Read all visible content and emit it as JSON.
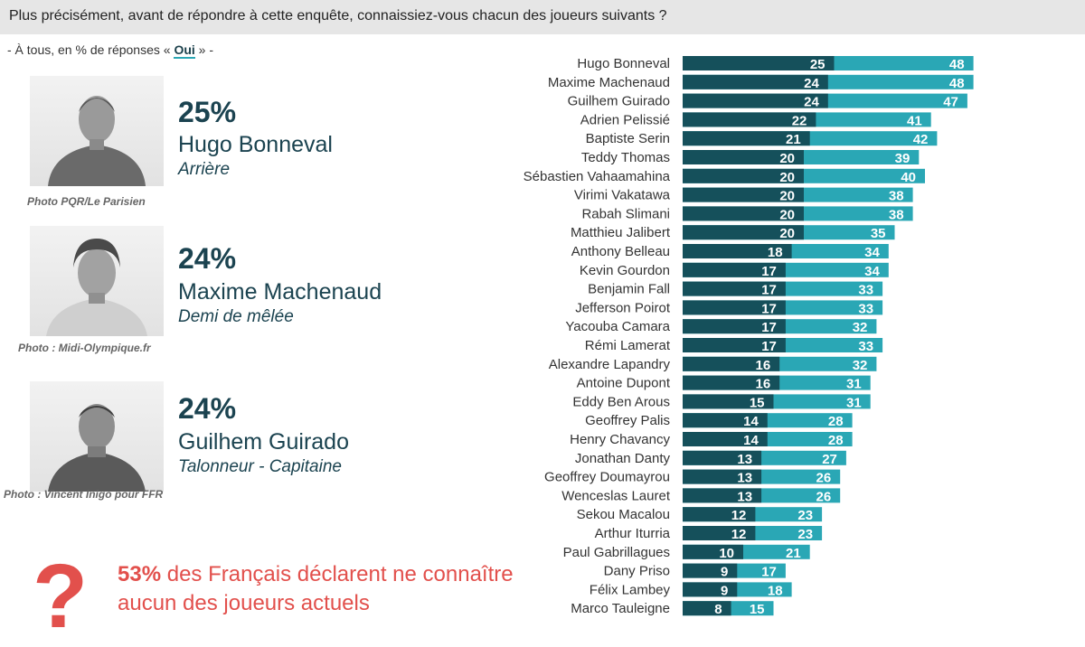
{
  "header": {
    "question": "Plus précisément, avant de répondre à cette enquête, connaissiez-vous chacun des joueurs suivants ?"
  },
  "subtitle": {
    "prefix": "- À tous, en % de réponses « ",
    "highlight": "Oui",
    "suffix": " » -"
  },
  "featured": [
    {
      "pct": "25%",
      "name": "Hugo Bonneval",
      "role": "Arrière",
      "credit": "Photo PQR/Le Parisien"
    },
    {
      "pct": "24%",
      "name": "Maxime Machenaud",
      "role": "Demi de mêlée",
      "credit": "Photo : Midi-Olympique.fr"
    },
    {
      "pct": "24%",
      "name": "Guilhem Guirado",
      "role": "Talonneur - Capitaine",
      "credit": "Photo : Vincent Inigo pour FFR"
    }
  ],
  "callout": {
    "mark": "?",
    "bold": "53%",
    "text": " des Français déclarent ne connaître aucun des joueurs actuels"
  },
  "colors": {
    "dark_series": "#15505b",
    "light_series": "#2aa7b5",
    "accent_red": "#e2504c"
  },
  "chart_data": {
    "type": "bar",
    "orientation": "horizontal",
    "stacked": false,
    "categories": [
      "Hugo Bonneval",
      "Maxime Machenaud",
      "Guilhem Guirado",
      "Adrien Pelissié",
      "Baptiste Serin",
      "Teddy Thomas",
      "Sébastien Vahaamahina",
      "Virimi Vakatawa",
      "Rabah Slimani",
      "Matthieu Jalibert",
      "Anthony Belleau",
      "Kevin Gourdon",
      "Benjamin Fall",
      "Jefferson Poirot",
      "Yacouba Camara",
      "Rémi Lamerat",
      "Alexandre Lapandry",
      "Antoine Dupont",
      "Eddy Ben Arous",
      "Geoffrey Palis",
      "Henry Chavancy",
      "Jonathan Danty",
      "Geoffrey Doumayrou",
      "Wenceslas Lauret",
      "Sekou Macalou",
      "Arthur Iturria",
      "Paul Gabrillagues",
      "Dany Priso",
      "Félix Lambey",
      "Marco Tauleigne"
    ],
    "series": [
      {
        "values": [
          25,
          24,
          24,
          22,
          21,
          20,
          20,
          20,
          20,
          20,
          18,
          17,
          17,
          17,
          17,
          17,
          16,
          16,
          15,
          14,
          14,
          13,
          13,
          13,
          12,
          12,
          10,
          9,
          9,
          8
        ]
      },
      {
        "values": [
          48,
          48,
          47,
          41,
          42,
          39,
          40,
          38,
          38,
          35,
          34,
          34,
          33,
          33,
          32,
          33,
          32,
          31,
          31,
          28,
          28,
          27,
          26,
          26,
          23,
          23,
          21,
          17,
          18,
          15
        ]
      }
    ],
    "xlim": [
      0,
      50
    ],
    "grid": false,
    "legend": "none"
  }
}
